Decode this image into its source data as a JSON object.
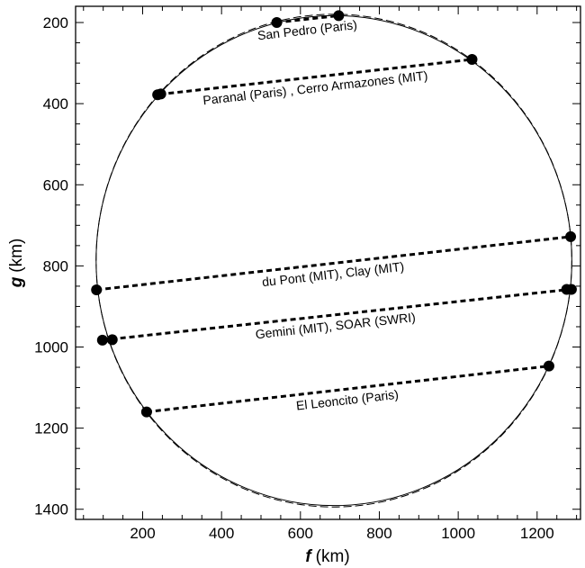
{
  "chart_data": {
    "type": "scatter",
    "title": "",
    "x_axis": {
      "variable": "f",
      "unit": "(km)",
      "lim": [
        30,
        1310
      ],
      "ticks": [
        200,
        400,
        600,
        800,
        1000,
        1200
      ]
    },
    "y_axis": {
      "variable": "g",
      "unit": "(km)",
      "lim": [
        1425,
        160
      ],
      "inverted": true,
      "ticks": [
        200,
        400,
        600,
        800,
        1000,
        1200,
        1400
      ]
    },
    "grid": false,
    "ellipse_fit": {
      "center": [
        685,
        787
      ],
      "radii": [
        603,
        604
      ],
      "style": "solid"
    },
    "circle_fit": {
      "center": [
        685,
        787
      ],
      "radius": 603,
      "style": "dashed"
    },
    "chords": [
      {
        "label": "San Pedro (Paris)",
        "start": [
          540,
          200
        ],
        "end": [
          697,
          183
        ]
      },
      {
        "label": "Paranal (Paris) , Cerro Armazones (MIT)",
        "start": [
          243,
          377
        ],
        "end": [
          1035,
          291
        ]
      },
      {
        "label": "du Pont (MIT), Clay (MIT)",
        "start": [
          83,
          859
        ],
        "end": [
          1285,
          728
        ]
      },
      {
        "label": "Gemini (MIT), SOAR (SWRI)",
        "start": [
          98,
          983
        ],
        "end": [
          1282,
          858
        ]
      },
      {
        "label": "El Leoncito (Paris)",
        "start": [
          210,
          1160
        ],
        "end": [
          1230,
          1047
        ]
      }
    ],
    "points": [
      [
        540,
        200
      ],
      [
        697,
        183
      ],
      [
        238,
        378
      ],
      [
        246,
        376
      ],
      [
        1035,
        291
      ],
      [
        83,
        859
      ],
      [
        1285,
        728
      ],
      [
        98,
        983
      ],
      [
        123,
        982
      ],
      [
        1275,
        858
      ],
      [
        1287,
        858
      ],
      [
        210,
        1160
      ],
      [
        1230,
        1047
      ]
    ]
  }
}
